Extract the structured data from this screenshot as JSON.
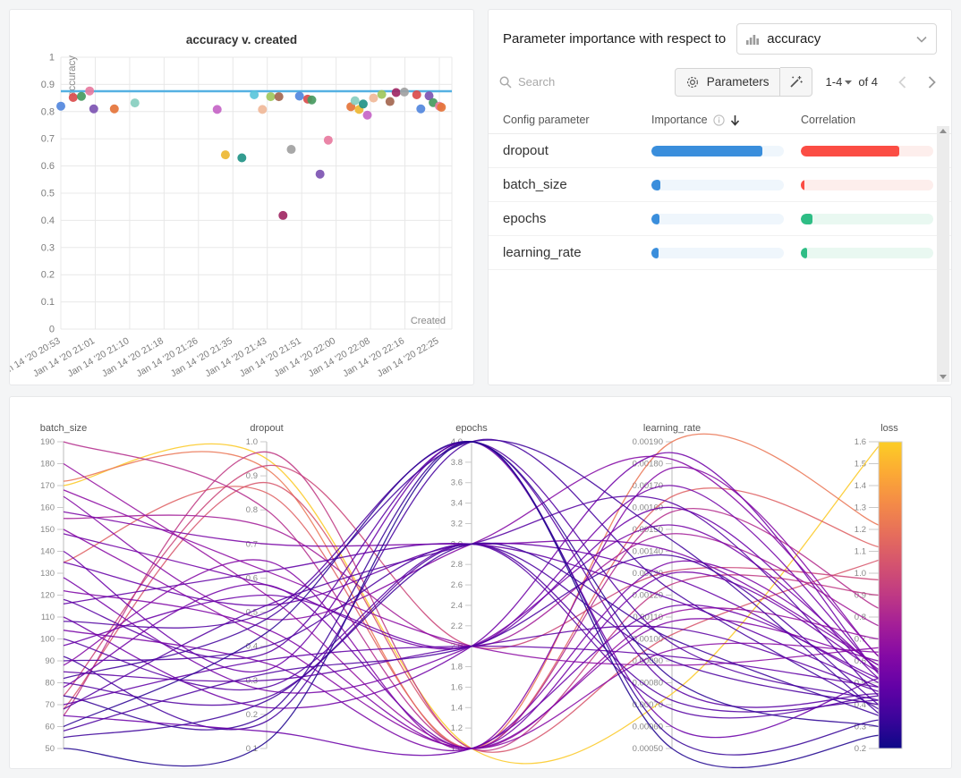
{
  "scatter_panel": {
    "grid_color": "#e8e8e8",
    "axis_text_color": "#7c7c7c",
    "baseline_color": "#55b1e2"
  },
  "importance_panel": {
    "header_text": "Parameter importance with respect to",
    "metric_value": "accuracy",
    "search_placeholder": "Search",
    "parameters_label": "Parameters",
    "pagination_range": "1-4",
    "pagination_of": "of 4",
    "icons": {
      "metric": "bar-chart-icon",
      "dropdown": "chevron-down-icon",
      "search": "search-icon",
      "parameters": "gear-icon",
      "magic": "magic-wand-icon",
      "info": "info-icon",
      "sort": "arrow-down-icon",
      "prev": "chevron-left-icon",
      "next": "chevron-right-icon"
    },
    "table": {
      "columns": [
        "Config parameter",
        "Importance",
        "Correlation"
      ],
      "importance_color": "#3a8edc",
      "importance_track": "#eff6fc",
      "positive_color": "#2ebd85",
      "positive_track": "#e9f8f1",
      "negative_color": "#fb4d44",
      "negative_track": "#fdeeec",
      "rows": [
        {
          "param": "dropout",
          "importance": 0.84,
          "correlation": -0.74
        },
        {
          "param": "batch_size",
          "importance": 0.067,
          "correlation": -0.027
        },
        {
          "param": "epochs",
          "importance": 0.06,
          "correlation": 0.088
        },
        {
          "param": "learning_rate",
          "importance": 0.054,
          "correlation": 0.047
        }
      ]
    }
  },
  "chart_data": [
    {
      "type": "scatter",
      "title": "accuracy v. created",
      "xlabel": "Created",
      "ylabel": "accuracy",
      "ylim": [
        0,
        1
      ],
      "y_tick_step": 0.1,
      "grid": true,
      "baseline_y": 0.875,
      "x_tick_labels": [
        "Jan 14 '20 20:53",
        "Jan 14 '20 21:01",
        "Jan 14 '20 21:10",
        "Jan 14 '20 21:18",
        "Jan 14 '20 21:26",
        "Jan 14 '20 21:35",
        "Jan 14 '20 21:43",
        "Jan 14 '20 21:51",
        "Jan 14 '20 22:00",
        "Jan 14 '20 22:08",
        "Jan 14 '20 22:16",
        "Jan 14 '20 22:25"
      ],
      "x_minutes_span": 92,
      "points_format": [
        "minutes_from_start",
        "accuracy",
        "color"
      ],
      "points": [
        [
          0,
          0.82,
          "#5387DD"
        ],
        [
          3,
          0.852,
          "#DA4C4C"
        ],
        [
          5,
          0.856,
          "#479A5F"
        ],
        [
          7,
          0.876,
          "#E87B9F"
        ],
        [
          8,
          0.81,
          "#7D54B2"
        ],
        [
          13,
          0.81,
          "#E57439"
        ],
        [
          18,
          0.832,
          "#87CEBF"
        ],
        [
          38,
          0.808,
          "#C565C7"
        ],
        [
          40,
          0.641,
          "#EDB732"
        ],
        [
          44,
          0.63,
          "#229487"
        ],
        [
          47,
          0.862,
          "#5BC5DB"
        ],
        [
          49,
          0.808,
          "#F0B899"
        ],
        [
          51,
          0.855,
          "#A0C75C"
        ],
        [
          53,
          0.855,
          "#A46750"
        ],
        [
          54,
          0.418,
          "#A12864"
        ],
        [
          56,
          0.661,
          "#A1A1A1"
        ],
        [
          58,
          0.857,
          "#5387DD"
        ],
        [
          60,
          0.846,
          "#DA4C4C"
        ],
        [
          61,
          0.843,
          "#479A5F"
        ],
        [
          63,
          0.57,
          "#7D54B2"
        ],
        [
          65,
          0.695,
          "#E87B9F"
        ],
        [
          70.5,
          0.818,
          "#E57439"
        ],
        [
          71.5,
          0.84,
          "#87CEBF"
        ],
        [
          72.5,
          0.808,
          "#EDB732"
        ],
        [
          73.5,
          0.828,
          "#229487"
        ],
        [
          74.5,
          0.787,
          "#C565C7"
        ],
        [
          76,
          0.85,
          "#F0B899"
        ],
        [
          78,
          0.863,
          "#A0C75C"
        ],
        [
          80,
          0.837,
          "#A46750"
        ],
        [
          81.5,
          0.87,
          "#A12864"
        ],
        [
          83.5,
          0.872,
          "#A1A1A1"
        ],
        [
          86.5,
          0.862,
          "#DA4C4C"
        ],
        [
          87.5,
          0.81,
          "#5387DD"
        ],
        [
          89.5,
          0.858,
          "#7D54B2"
        ],
        [
          90.5,
          0.833,
          "#479A5F"
        ],
        [
          92,
          0.82,
          "#E87B9F"
        ],
        [
          92.5,
          0.816,
          "#E57439"
        ]
      ]
    },
    {
      "type": "parallel-coordinates",
      "color_metric": "loss",
      "colormap": "plasma",
      "axes": [
        {
          "name": "batch_size",
          "min": 50,
          "max": 190,
          "tick_step": 10,
          "decimals": 0
        },
        {
          "name": "dropout",
          "min": 0.1,
          "max": 1.0,
          "tick_step": 0.1,
          "decimals": 1
        },
        {
          "name": "epochs",
          "min": 1.0,
          "max": 4.0,
          "tick_step": 0.2,
          "decimals": 1
        },
        {
          "name": "learning_rate",
          "min": 0.0005,
          "max": 0.0019,
          "tick_step": 0.0001,
          "decimals": 5
        },
        {
          "name": "loss",
          "min": 0.2,
          "max": 1.6,
          "tick_step": 0.1,
          "decimals": 1
        }
      ],
      "runs_format": [
        "batch_size",
        "dropout",
        "epochs",
        "learning_rate",
        "loss"
      ],
      "runs": [
        [
          170,
          0.95,
          1,
          0.00075,
          1.58
        ],
        [
          172,
          0.92,
          1,
          0.0019,
          1.22
        ],
        [
          135,
          0.85,
          1,
          0.00165,
          1.12
        ],
        [
          68,
          0.88,
          1,
          0.00102,
          1.06
        ],
        [
          74,
          0.93,
          2,
          0.00131,
          0.97
        ],
        [
          65,
          0.97,
          1,
          0.00125,
          0.9
        ],
        [
          190,
          0.8,
          1,
          0.00158,
          0.84
        ],
        [
          155,
          0.75,
          2,
          0.00148,
          0.76
        ],
        [
          180,
          0.55,
          1,
          0.00112,
          0.7
        ],
        [
          168,
          0.62,
          2,
          0.00088,
          0.66
        ],
        [
          165,
          0.48,
          3,
          0.00182,
          0.62
        ],
        [
          158,
          0.7,
          3,
          0.0014,
          0.58
        ],
        [
          150,
          0.42,
          1,
          0.00095,
          0.64
        ],
        [
          148,
          0.58,
          2,
          0.0017,
          0.55
        ],
        [
          140,
          0.33,
          4,
          0.0006,
          0.52
        ],
        [
          135,
          0.52,
          3,
          0.00128,
          0.5
        ],
        [
          128,
          0.27,
          2,
          0.00152,
          0.56
        ],
        [
          122,
          0.45,
          1,
          0.00108,
          0.6
        ],
        [
          118,
          0.38,
          4,
          0.00078,
          0.45
        ],
        [
          116,
          0.62,
          3,
          0.00118,
          0.48
        ],
        [
          110,
          0.22,
          2,
          0.00185,
          0.54
        ],
        [
          108,
          0.5,
          4,
          0.00098,
          0.42
        ],
        [
          104,
          0.35,
          1,
          0.00135,
          0.58
        ],
        [
          100,
          0.28,
          3,
          0.00068,
          0.44
        ],
        [
          97,
          0.55,
          2,
          0.0016,
          0.52
        ],
        [
          92,
          0.18,
          4,
          0.00122,
          0.38
        ],
        [
          90,
          0.4,
          3,
          0.0009,
          0.4
        ],
        [
          88,
          0.65,
          1,
          0.00178,
          0.62
        ],
        [
          85,
          0.3,
          2,
          0.00105,
          0.46
        ],
        [
          82,
          0.48,
          4,
          0.00145,
          0.36
        ],
        [
          80,
          0.25,
          3,
          0.00072,
          0.42
        ],
        [
          78,
          0.58,
          1,
          0.0013,
          0.55
        ],
        [
          74,
          0.2,
          4,
          0.00055,
          0.33
        ],
        [
          70,
          0.36,
          2,
          0.00092,
          0.48
        ],
        [
          68,
          0.52,
          3,
          0.00162,
          0.44
        ],
        [
          65,
          0.15,
          1,
          0.00115,
          0.52
        ],
        [
          60,
          0.44,
          4,
          0.00082,
          0.3
        ],
        [
          58,
          0.32,
          2,
          0.00138,
          0.4
        ],
        [
          55,
          0.24,
          3,
          0.001,
          0.35
        ],
        [
          50,
          0.12,
          4,
          0.0005,
          0.26
        ]
      ]
    }
  ]
}
